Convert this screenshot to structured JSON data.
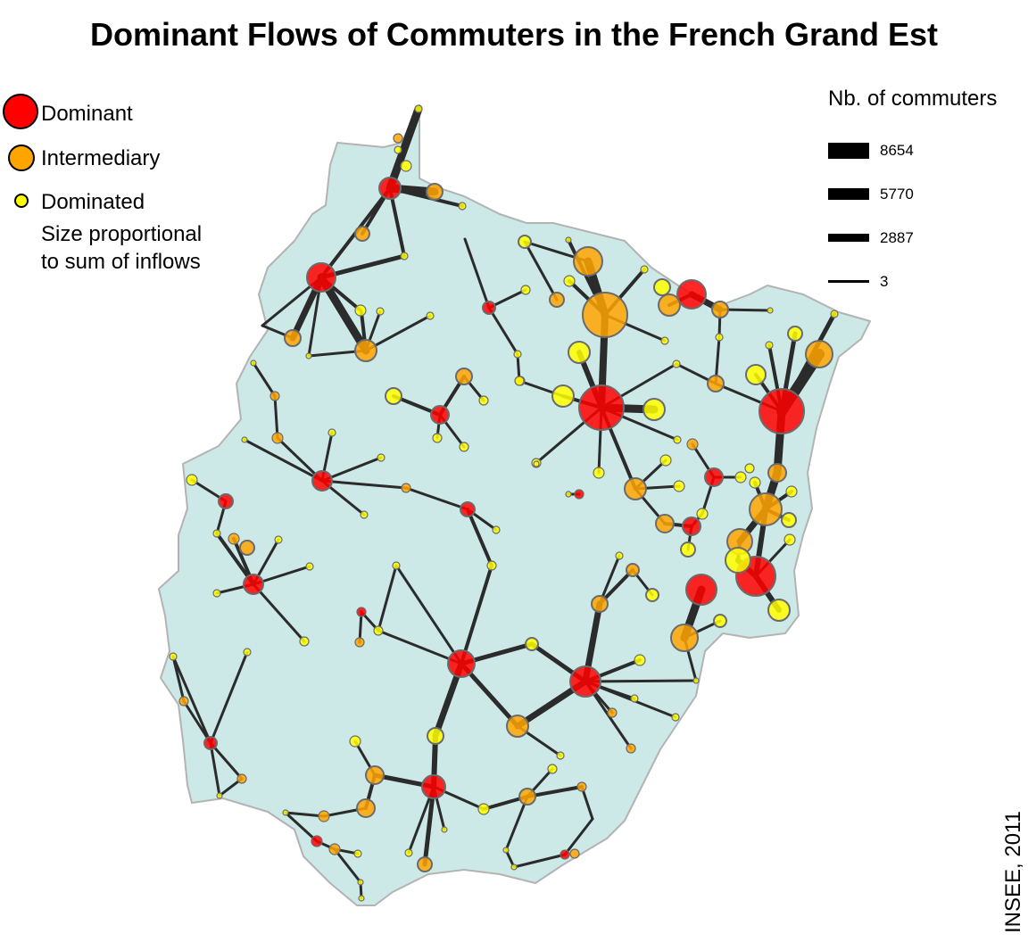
{
  "title": "Dominant Flows of Commuters in the French Grand Est",
  "source": "INSEE, 2011",
  "legend_types": {
    "items": [
      {
        "label": "Dominant",
        "color": "#ff0000"
      },
      {
        "label": "Intermediary",
        "color": "#ffa500"
      },
      {
        "label": "Dominated",
        "color": "#ffff00"
      }
    ],
    "note_line1": "Size proportional",
    "note_line2": "to sum of inflows"
  },
  "legend_flows": {
    "title": "Nb. of commuters",
    "items": [
      {
        "label": "8654",
        "value": 8654
      },
      {
        "label": "5770",
        "value": 5770
      },
      {
        "label": "2887",
        "value": 2887
      },
      {
        "label": "3",
        "value": 3
      }
    ]
  },
  "colors": {
    "region_fill": "#cde9e7",
    "region_border": "#b3b3b3",
    "flow_line": "#2b2b2b",
    "dominant": "#ff0000",
    "intermediary": "#ffa500",
    "dominated": "#ffff00"
  }
}
